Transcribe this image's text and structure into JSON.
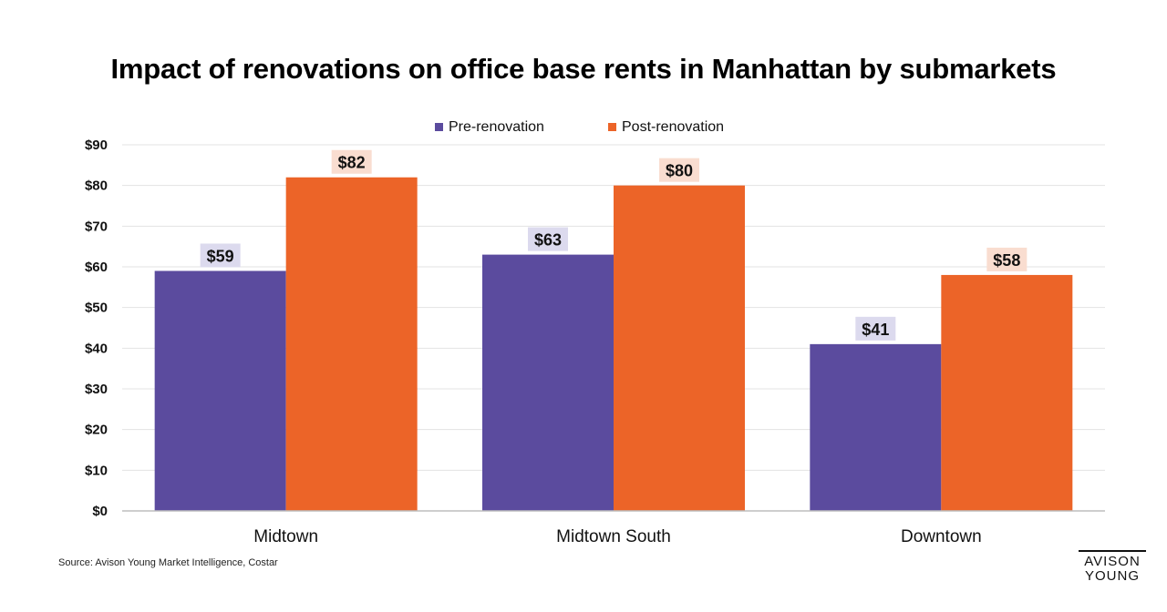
{
  "chart_data": {
    "type": "bar",
    "title": "Impact of renovations on office base rents in Manhattan by submarkets",
    "categories": [
      "Midtown",
      "Midtown South",
      "Downtown"
    ],
    "series": [
      {
        "name": "Pre-renovation",
        "values": [
          59,
          63,
          41
        ],
        "labels": [
          "$59",
          "$63",
          "$41"
        ],
        "color": "#5b4b9e",
        "label_bg": "#dcdaee"
      },
      {
        "name": "Post-renovation",
        "values": [
          82,
          80,
          58
        ],
        "labels": [
          "$82",
          "$80",
          "$58"
        ],
        "color": "#ec6428",
        "label_bg": "#f9ddd0"
      }
    ],
    "yticks": [
      "$0",
      "$10",
      "$20",
      "$30",
      "$40",
      "$50",
      "$60",
      "$70",
      "$80",
      "$90"
    ],
    "ylim": [
      0,
      90
    ],
    "grid": true,
    "legend": "top-center"
  },
  "footer": {
    "source": "Source: Avison Young Market Intelligence, Costar",
    "logo_line1": "AVISON",
    "logo_line2": "YOUNG"
  }
}
